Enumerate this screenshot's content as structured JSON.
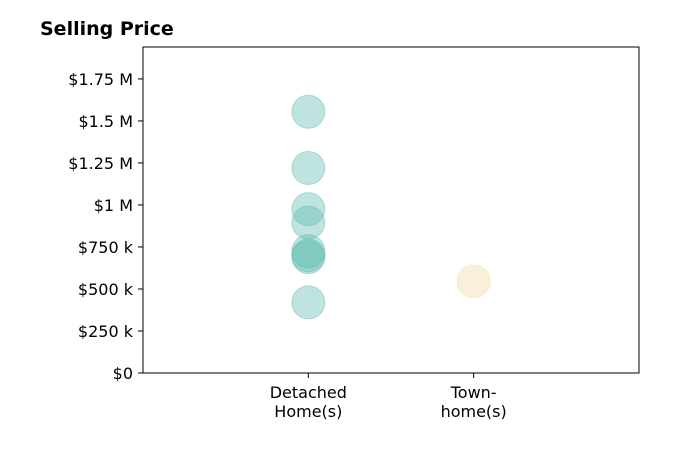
{
  "chart_data": {
    "type": "scatter",
    "title": "Selling Price",
    "xlabel": "",
    "ylabel": "",
    "categories": [
      [
        "Detached",
        "Home(s)"
      ],
      [
        "Town-",
        "home(s)"
      ]
    ],
    "ylim": [
      0,
      1940000
    ],
    "xlim": [
      -1,
      2
    ],
    "yticks": [
      {
        "value": 0,
        "label": "$0"
      },
      {
        "value": 250000,
        "label": "$250 k"
      },
      {
        "value": 500000,
        "label": "$500 k"
      },
      {
        "value": 750000,
        "label": "$750 k"
      },
      {
        "value": 1000000,
        "label": "$1 M"
      },
      {
        "value": 1250000,
        "label": "$1.25 M"
      },
      {
        "value": 1500000,
        "label": "$1.5 M"
      },
      {
        "value": 1750000,
        "label": "$1.75 M"
      }
    ],
    "series": [
      {
        "category_index": 0,
        "color": "#5fbcae",
        "values": [
          1555000,
          1220000,
          975000,
          895000,
          725000,
          700000,
          690000,
          420000
        ]
      },
      {
        "category_index": 1,
        "color": "#f3d9a0",
        "values": [
          545000
        ]
      }
    ],
    "grid": false,
    "legend": "none"
  }
}
